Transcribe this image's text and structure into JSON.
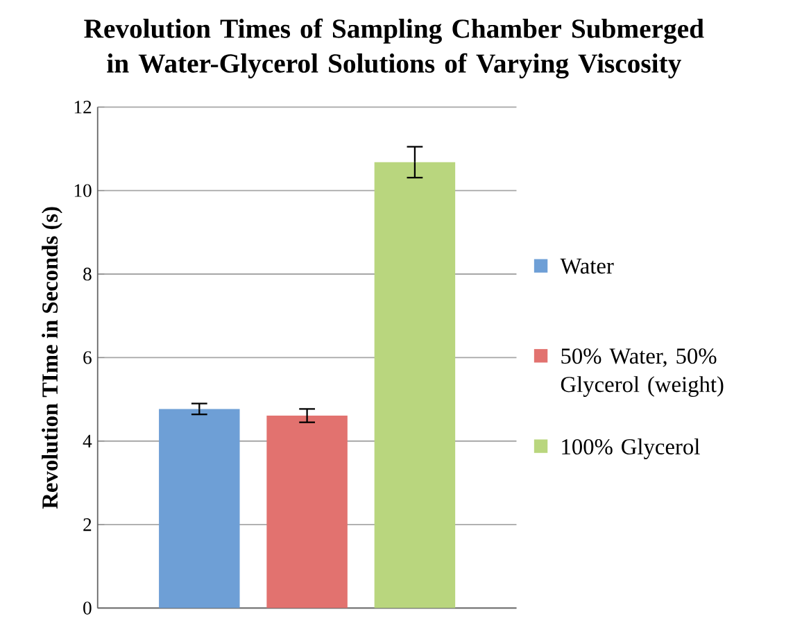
{
  "chart_data": {
    "type": "bar",
    "title": "Revolution Times of Sampling Chamber Submerged in Water-Glycerol Solutions of Varying Viscosity",
    "ylabel": "Revolution TIme in Seconds (s)",
    "categories": [
      null
    ],
    "series": [
      {
        "name": "Water",
        "color": "#6e9fd6",
        "values": [
          4.77
        ],
        "errors": [
          0.13
        ]
      },
      {
        "name": "50% Water, 50% Glycerol (weight)",
        "color": "#e2726f",
        "values": [
          4.61
        ],
        "errors": [
          0.16
        ]
      },
      {
        "name": "100% Glycerol",
        "color": "#b9d67e",
        "values": [
          10.68
        ],
        "errors": [
          0.37
        ]
      }
    ],
    "ylim": [
      0,
      12
    ],
    "yticks": [
      0,
      2,
      4,
      6,
      8,
      10,
      12
    ],
    "grid": "y",
    "legend": "right"
  }
}
